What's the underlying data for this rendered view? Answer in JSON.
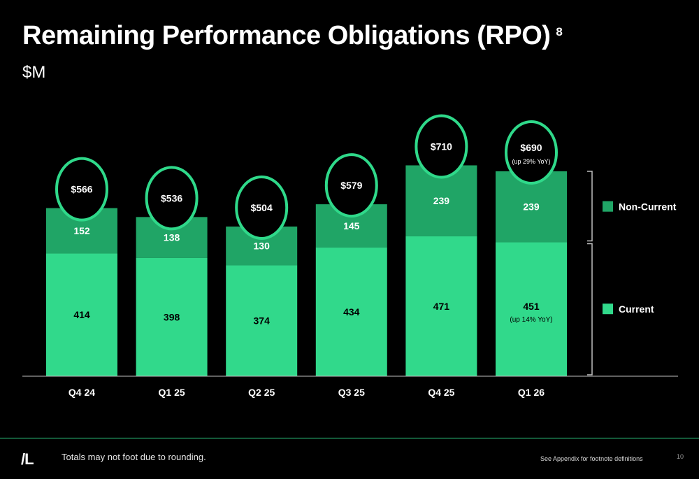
{
  "header": {
    "title": "Remaining Performance Obligations (RPO)",
    "footnote_marker": "8",
    "subtitle": "$M"
  },
  "chart_data": {
    "type": "bar",
    "stacked": true,
    "categories": [
      "Q4 24",
      "Q1 25",
      "Q2 25",
      "Q3 25",
      "Q4 25",
      "Q1 26"
    ],
    "series": [
      {
        "name": "Current",
        "values": [
          414,
          398,
          374,
          434,
          471,
          451
        ],
        "labels": [
          "414",
          "398",
          "374",
          "434",
          "471",
          "451"
        ],
        "color": "#31d98b"
      },
      {
        "name": "Non-Current",
        "values": [
          152,
          138,
          130,
          145,
          239,
          239
        ],
        "labels": [
          "152",
          "138",
          "130",
          "145",
          "239",
          "239"
        ],
        "color": "#20a566"
      }
    ],
    "totals": [
      566,
      536,
      504,
      579,
      710,
      690
    ],
    "total_labels": [
      "$566",
      "$536",
      "$504",
      "$579",
      "$710",
      "$690"
    ],
    "annotations": {
      "total_last_note": "(up 29% YoY)",
      "current_last_note": "(up 14% YoY)"
    },
    "legend": {
      "position": "right",
      "items": [
        "Non-Current",
        "Current"
      ]
    },
    "accent_color": "#2fd98a",
    "grid": false
  },
  "footer": {
    "logo": "/L",
    "note": "Totals may not foot due to rounding.",
    "appendix": "See Appendix for footnote definitions",
    "page_number": "10"
  }
}
